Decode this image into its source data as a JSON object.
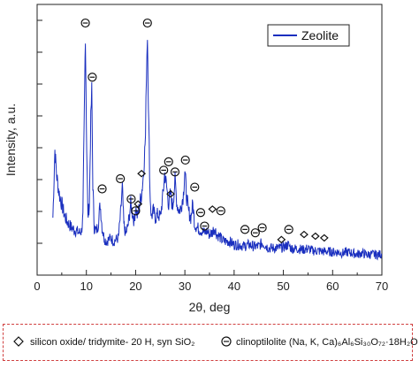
{
  "chart_data": {
    "type": "line",
    "xlabel": "2θ, deg",
    "ylabel": "Intensity, a.u.",
    "xlim": [
      0,
      70
    ],
    "xticks": [
      0,
      10,
      20,
      30,
      40,
      50,
      60,
      70
    ],
    "grid": false,
    "legend_position": "top-right",
    "series": [
      {
        "name": "Zeolite",
        "color": "#1a2fbf",
        "x": [
          3.2,
          3.6,
          4,
          4.5,
          5,
          5.5,
          6,
          6.5,
          7,
          7.5,
          8,
          8.5,
          9,
          9.3,
          9.6,
          9.8,
          10,
          10.3,
          10.6,
          10.9,
          11.1,
          11.3,
          11.6,
          12,
          12.4,
          12.8,
          13.2,
          13.6,
          14,
          14.5,
          15,
          15.5,
          16,
          16.5,
          17,
          17.3,
          17.6,
          18,
          18.5,
          19,
          19.4,
          19.7,
          20,
          20.4,
          20.8,
          21.2,
          21.6,
          22,
          22.2,
          22.4,
          22.6,
          22.9,
          23.2,
          23.6,
          24,
          24.5,
          25,
          25.5,
          25.9,
          26.3,
          26.7,
          27.1,
          27.5,
          28,
          28.4,
          28.8,
          29.2,
          29.7,
          30,
          30.3,
          30.7,
          31.2,
          31.6,
          32,
          32.5,
          33,
          33.5,
          34,
          34.5,
          35,
          35.5,
          36,
          36.5,
          37,
          37.5,
          38,
          39,
          40,
          41,
          42,
          43,
          44,
          45,
          45.6,
          46.2,
          47,
          48,
          49,
          50,
          51,
          51.5,
          52,
          53,
          54,
          55,
          56,
          57,
          58,
          59,
          60,
          61,
          62,
          63,
          64,
          65,
          66,
          67,
          68,
          69,
          70
        ],
        "y": [
          2.2,
          4.2,
          3.4,
          2.9,
          2.6,
          2.3,
          2.1,
          2.0,
          1.9,
          1.85,
          1.8,
          1.75,
          1.8,
          2.2,
          5.5,
          7.6,
          5.0,
          2.2,
          2.6,
          5.1,
          6.0,
          3.2,
          1.9,
          1.8,
          2.0,
          2.6,
          1.9,
          1.6,
          1.5,
          1.55,
          1.6,
          1.5,
          1.55,
          1.6,
          2.4,
          3.1,
          2.0,
          1.7,
          2.0,
          2.6,
          2.3,
          2.1,
          2.5,
          2.2,
          2.6,
          2.9,
          3.5,
          4.6,
          6.5,
          7.6,
          5.6,
          3.0,
          2.2,
          2.4,
          2.2,
          2.3,
          2.2,
          2.8,
          3.5,
          3.1,
          2.6,
          2.9,
          2.5,
          3.3,
          2.6,
          2.4,
          2.5,
          2.9,
          3.6,
          2.9,
          2.4,
          2.2,
          2.6,
          2.0,
          1.9,
          1.85,
          1.8,
          1.75,
          1.8,
          1.7,
          1.75,
          1.9,
          1.7,
          1.65,
          1.55,
          1.5,
          1.5,
          1.4,
          1.4,
          1.35,
          1.4,
          1.35,
          1.35,
          1.45,
          1.4,
          1.3,
          1.3,
          1.3,
          1.32,
          1.4,
          1.3,
          1.28,
          1.28,
          1.25,
          1.28,
          1.22,
          1.22,
          1.2,
          1.2,
          1.18,
          1.18,
          1.15,
          1.18,
          1.15,
          1.12,
          1.15,
          1.1,
          1.12,
          1.1,
          1.12
        ]
      }
    ],
    "peak_markers": [
      {
        "symbol": "clinoptilolite",
        "x": 9.8,
        "y": 7.95
      },
      {
        "symbol": "clinoptilolite",
        "x": 11.2,
        "y": 6.35
      },
      {
        "symbol": "clinoptilolite",
        "x": 13.2,
        "y": 3.05
      },
      {
        "symbol": "clinoptilolite",
        "x": 16.9,
        "y": 3.35
      },
      {
        "symbol": "clinoptilolite",
        "x": 19.1,
        "y": 2.75
      },
      {
        "symbol": "clinoptilolite",
        "x": 20.0,
        "y": 2.4
      },
      {
        "symbol": "clinoptilolite",
        "x": 22.4,
        "y": 7.95
      },
      {
        "symbol": "clinoptilolite",
        "x": 25.7,
        "y": 3.6
      },
      {
        "symbol": "clinoptilolite",
        "x": 26.7,
        "y": 3.85
      },
      {
        "symbol": "clinoptilolite",
        "x": 28.0,
        "y": 3.55
      },
      {
        "symbol": "clinoptilolite",
        "x": 30.1,
        "y": 3.9
      },
      {
        "symbol": "clinoptilolite",
        "x": 32.0,
        "y": 3.1
      },
      {
        "symbol": "clinoptilolite",
        "x": 33.2,
        "y": 2.35
      },
      {
        "symbol": "clinoptilolite",
        "x": 34.0,
        "y": 1.95
      },
      {
        "symbol": "clinoptilolite",
        "x": 37.3,
        "y": 2.4
      },
      {
        "symbol": "clinoptilolite",
        "x": 42.2,
        "y": 1.85
      },
      {
        "symbol": "clinoptilolite",
        "x": 44.3,
        "y": 1.75
      },
      {
        "symbol": "clinoptilolite",
        "x": 45.7,
        "y": 1.9
      },
      {
        "symbol": "clinoptilolite",
        "x": 51.1,
        "y": 1.85
      },
      {
        "symbol": "tridymite",
        "x": 21.2,
        "y": 3.5
      },
      {
        "symbol": "tridymite",
        "x": 20.5,
        "y": 2.6
      },
      {
        "symbol": "tridymite",
        "x": 27.1,
        "y": 2.9
      },
      {
        "symbol": "tridymite",
        "x": 35.6,
        "y": 2.45
      },
      {
        "symbol": "tridymite",
        "x": 49.6,
        "y": 1.55
      },
      {
        "symbol": "tridymite",
        "x": 54.2,
        "y": 1.7
      },
      {
        "symbol": "tridymite",
        "x": 56.5,
        "y": 1.65
      },
      {
        "symbol": "tridymite",
        "x": 58.3,
        "y": 1.6
      }
    ],
    "footer_legend": [
      {
        "symbol": "tridymite",
        "label": "silicon oxide/ tridymite- 20 H, syn SiO₂"
      },
      {
        "symbol": "clinoptilolite",
        "label": "clinoptilolite (Na, K, Ca)₆Al₆Si₃₀O₇₂·18H₂O"
      }
    ]
  }
}
